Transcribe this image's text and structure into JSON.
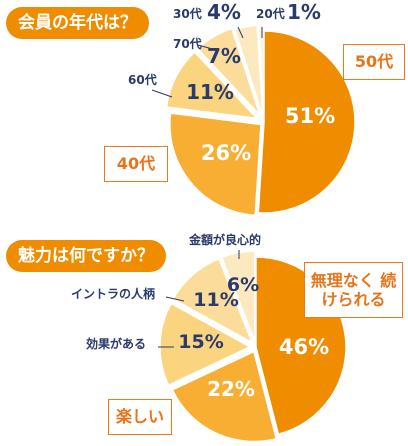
{
  "chart_data": [
    {
      "type": "pie",
      "title": "会員の年代は？",
      "colors": [
        "#f08c00",
        "#f8ae33",
        "#fad47f",
        "#fcdc9a",
        "#fde9c0",
        "#fef5e2"
      ],
      "slices": [
        {
          "label": "50代",
          "value": 51,
          "value_label": "51%"
        },
        {
          "label": "40代",
          "value": 26,
          "value_label": "26%"
        },
        {
          "label": "60代",
          "value": 11,
          "value_label": "11%"
        },
        {
          "label": "70代",
          "value": 7,
          "value_label": "7%"
        },
        {
          "label": "30代",
          "value": 4,
          "value_label": "4%"
        },
        {
          "label": "20代",
          "value": 1,
          "value_label": "1%"
        }
      ]
    },
    {
      "type": "pie",
      "title": "魅力は何ですか？",
      "colors": [
        "#f08c00",
        "#f8ae33",
        "#fad47f",
        "#fcdc9a",
        "#fde9c0"
      ],
      "slices": [
        {
          "label": "無理なく 続けられる",
          "value": 46,
          "value_label": "46%"
        },
        {
          "label": "楽しい",
          "value": 22,
          "value_label": "22%"
        },
        {
          "label": "効果がある",
          "value": 15,
          "value_label": "15%"
        },
        {
          "label": "イントラの人柄",
          "value": 11,
          "value_label": "11%"
        },
        {
          "label": "金額が良心的",
          "value": 6,
          "value_label": "6%"
        }
      ]
    }
  ]
}
